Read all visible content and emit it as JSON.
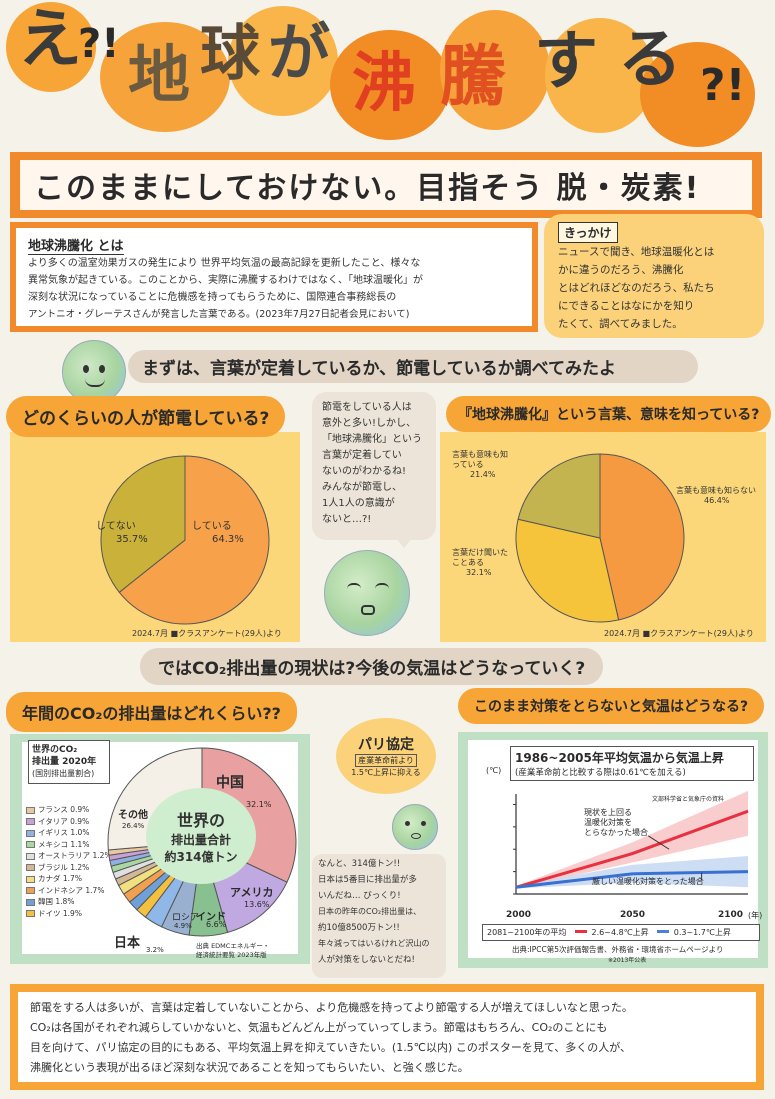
{
  "header": {
    "title_chars": [
      "え",
      "?!",
      "地",
      "球",
      "が",
      "沸",
      "騰",
      "す",
      "る",
      "?!"
    ],
    "subtitle": "このままにしておけない。目指そう 脱・炭素!"
  },
  "definition": {
    "heading": "地球沸騰化 とは",
    "lines": [
      "より多くの温室効果ガスの発生により 世界平均気温の最高記録を更新したこと、様々な",
      "異常気象が起きている。このことから、実際に沸騰するわけではなく、「地球温暖化」が",
      "深刻な状況になっていることに危機感を持ってもらうために、国際連合事務総長の",
      "アントニオ・グレーテスさんが発言した言葉である。(2023年7月27日記者会見において)"
    ]
  },
  "kikkake": {
    "heading": "きっかけ",
    "lines": [
      "ニュースで聞き、地球温暖化とは",
      "かに違うのだろう、沸騰化",
      "とはどれほどなのだろう、私たち",
      "にできることはなにかを知り",
      "たくて、調べてみました。"
    ]
  },
  "section1_heading": "まずは、言葉が定着しているか、節電しているか調べてみたよ",
  "savings": {
    "question": "どのくらいの人が節電している?",
    "chart_title_note": "2024.7月 ■クラスアンケート(29人)より",
    "slice_labels": [
      {
        "name": "してない",
        "value": "35.7%"
      },
      {
        "name": "している",
        "value": "64.3%"
      }
    ]
  },
  "speech": {
    "lines": [
      "節電をしている人は",
      "意外と多い!しかし、",
      "「地球沸騰化」という",
      "言葉が定着してい",
      "ないのがわかるね!",
      "みんなが節電し、",
      "1人1人の意識が",
      "ないと…?!"
    ]
  },
  "awareness": {
    "question": "『地球沸騰化』という言葉、意味を知っている?",
    "chart_title_note": "2024.7月 ■クラスアンケート(29人)より",
    "slice_labels": [
      {
        "name": "言葉も意味も知っている",
        "value": "21.4%"
      },
      {
        "name": "言葉も意味も知らない",
        "value": "46.4%"
      },
      {
        "name": "言葉だけ聞いたことある",
        "value": "32.1%"
      }
    ]
  },
  "section2_heading": "ではCO₂排出量の現状は?今後の気温はどうなっていく?",
  "emissions": {
    "question": "年間のCO₂の排出量はどれくらい??",
    "box_title": [
      "世界のCO₂",
      "排出量 2020年",
      "(国別排出量割合)"
    ],
    "center_text": [
      "世界の",
      "排出量合計",
      "約314億トン"
    ],
    "legend": [
      {
        "name": "フランス",
        "value": "0.9%",
        "color": "#e8c8a0"
      },
      {
        "name": "イタリア",
        "value": "0.9%",
        "color": "#c9a0d8"
      },
      {
        "name": "イギリス",
        "value": "1.0%",
        "color": "#8fb0e0"
      },
      {
        "name": "メキシコ",
        "value": "1.1%",
        "color": "#a8d8a0"
      },
      {
        "name": "オーストラリア",
        "value": "1.2%",
        "color": "#e0e0e0"
      },
      {
        "name": "ブラジル",
        "value": "1.2%",
        "color": "#d4b896"
      },
      {
        "name": "カナダ",
        "value": "1.7%",
        "color": "#f0e080"
      },
      {
        "name": "インドネシア",
        "value": "1.7%",
        "color": "#f0a050"
      },
      {
        "name": "韓国",
        "value": "1.8%",
        "color": "#6fa0d8"
      },
      {
        "name": "ドイツ",
        "value": "1.9%",
        "color": "#f4c040"
      }
    ],
    "labels": {
      "china": "中国",
      "china_value": "32.1%",
      "usa": "アメリカ",
      "usa_value": "13.6%",
      "india": "インド",
      "india_value": "6.6%",
      "russia": "ロシア",
      "russia_value": "4.9%",
      "japan": "日本",
      "japan_value": "3.2%",
      "other": "その他",
      "other_value": "26.4%"
    },
    "source": [
      "出典 EDMCエネルギー・",
      "経済統計要覧 2023年版"
    ]
  },
  "paris": {
    "title": "パリ協定",
    "line1": "産業革命前より",
    "line2": "1.5℃上昇に抑える"
  },
  "comment": {
    "lines": [
      "なんと、314億トン!!",
      "日本は5番目に排出量が多",
      "いんだね… びっくり!",
      "日本の昨年のCO₂排出量は、",
      "約10億8500万トン!!",
      "年々減ってはいるけれど沢山の",
      "人が対策をしないとだね!"
    ]
  },
  "temperature": {
    "question": "このまま対策をとらないと気温はどうなる?",
    "chart_title": "1986~2005年平均気温から気温上昇",
    "chart_subtitle": "(産業革命前と比較する際は0.61℃を加える)",
    "unit": "(℃)",
    "source_top": "文部科学省と気象庁の資料",
    "annotation_high": [
      "現状を上回る",
      "温暖化対策を",
      "とらなかった場合"
    ],
    "annotation_low": "厳しい温暖化対策をとった場合",
    "xticks": [
      "2000",
      "2050",
      "2100"
    ],
    "xunit": "(年)",
    "legend_title": "2081~2100年の平均",
    "legend_high": "2.6~4.8℃上昇",
    "legend_low": "0.3~1.7℃上昇",
    "source": "出典:IPCC第5次評価報告書、外務省・環境省ホームページより",
    "source2": "※2013年公表"
  },
  "chart_data": [
    {
      "type": "pie",
      "title": "どのくらいの人が節電している?",
      "categories": [
        "している",
        "してない"
      ],
      "values": [
        64.3,
        35.7
      ]
    },
    {
      "type": "pie",
      "title": "『地球沸騰化』という言葉、意味を知っている?",
      "categories": [
        "言葉も意味も知らない",
        "言葉だけ聞いたことある",
        "言葉も意味も知っている"
      ],
      "values": [
        46.4,
        32.1,
        21.4
      ]
    },
    {
      "type": "pie",
      "title": "世界のCO₂排出量 2020年 (国別排出量割合)",
      "categories": [
        "中国",
        "アメリカ",
        "インド",
        "ロシア",
        "日本",
        "ドイツ",
        "韓国",
        "インドネシア",
        "カナダ",
        "ブラジル",
        "オーストラリア",
        "メキシコ",
        "イギリス",
        "イタリア",
        "フランス",
        "その他"
      ],
      "values": [
        32.1,
        13.6,
        6.6,
        4.9,
        3.2,
        1.9,
        1.8,
        1.7,
        1.7,
        1.2,
        1.2,
        1.1,
        1.0,
        0.9,
        0.9,
        26.4
      ]
    },
    {
      "type": "line",
      "title": "1986~2005年平均気温から気温上昇",
      "x": [
        2000,
        2050,
        2100
      ],
      "ylabel": "(℃)",
      "series": [
        {
          "name": "2.6~4.8℃上昇",
          "values": [
            0.3,
            1.8,
            3.7
          ]
        },
        {
          "name": "0.3~1.7℃上昇",
          "values": [
            0.3,
            0.9,
            1.0
          ]
        }
      ]
    }
  ],
  "conclusion": {
    "lines": [
      "節電をする人は多いが、言葉は定着していないことから、より危機感を持ってより節電する人が増えてほしいなと思った。",
      "CO₂は各国がそれぞれ減らしていかないと、気温もどんどん上がっていってしまう。節電はもちろん、CO₂のことにも",
      "目を向けて、パリ協定の目的にもある、平均気温上昇を抑えていきたい。(1.5℃以内) このポスターを見て、多くの人が、",
      "沸騰化という表現が出るほど深刻な状況であることを知ってもらいたい、と強く感じた。"
    ]
  }
}
